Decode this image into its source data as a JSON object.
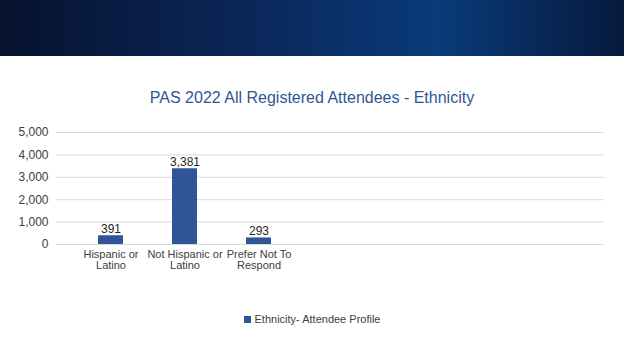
{
  "chart_data": {
    "type": "bar",
    "title": "PAS 2022 All Registered Attendees - Ethnicity",
    "categories": [
      "Hispanic or Latino",
      "Not Hispanic or Latino",
      "Prefer Not To Respond"
    ],
    "series": [
      {
        "name": "Ethnicity- Attendee Profile",
        "color": "#2f5597",
        "values": [
          391,
          3381,
          293
        ],
        "value_labels": [
          "391",
          "3,381",
          "293"
        ]
      }
    ],
    "ylim": [
      0,
      5000
    ],
    "yticks": [
      0,
      1000,
      2000,
      3000,
      4000,
      5000
    ],
    "grid": true,
    "data_labels": true,
    "legend": "bottom"
  }
}
